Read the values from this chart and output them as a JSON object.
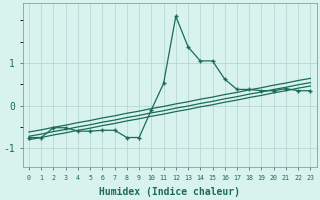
{
  "xlabel": "Humidex (Indice chaleur)",
  "bg_color": "#d8f2ee",
  "grid_color": "#b8d8d4",
  "line_color": "#1a6b5a",
  "x_data": [
    0,
    1,
    2,
    3,
    4,
    5,
    6,
    7,
    8,
    9,
    10,
    11,
    12,
    13,
    14,
    15,
    16,
    17,
    18,
    19,
    20,
    21,
    22,
    23
  ],
  "y_main": [
    -0.75,
    -0.75,
    -0.52,
    -0.52,
    -0.6,
    -0.6,
    -0.58,
    -0.58,
    -0.75,
    -0.75,
    -0.1,
    0.52,
    2.1,
    1.38,
    1.05,
    1.05,
    0.62,
    0.38,
    0.38,
    0.35,
    0.35,
    0.4,
    0.35,
    0.35
  ],
  "y_line1": [
    -0.62,
    -0.57,
    -0.51,
    -0.46,
    -0.4,
    -0.35,
    -0.29,
    -0.24,
    -0.18,
    -0.13,
    -0.07,
    -0.02,
    0.04,
    0.09,
    0.15,
    0.2,
    0.26,
    0.31,
    0.37,
    0.42,
    0.48,
    0.53,
    0.59,
    0.64
  ],
  "y_line2": [
    -0.72,
    -0.67,
    -0.61,
    -0.56,
    -0.5,
    -0.45,
    -0.39,
    -0.34,
    -0.28,
    -0.23,
    -0.17,
    -0.12,
    -0.06,
    -0.01,
    0.05,
    0.1,
    0.16,
    0.21,
    0.27,
    0.32,
    0.38,
    0.43,
    0.49,
    0.54
  ],
  "y_line3": [
    -0.8,
    -0.75,
    -0.69,
    -0.64,
    -0.58,
    -0.53,
    -0.47,
    -0.42,
    -0.36,
    -0.31,
    -0.25,
    -0.2,
    -0.14,
    -0.09,
    -0.03,
    0.02,
    0.08,
    0.13,
    0.19,
    0.24,
    0.3,
    0.35,
    0.41,
    0.46
  ],
  "ylim": [
    -1.45,
    2.4
  ],
  "yticks": [
    -1,
    0,
    1
  ],
  "xlim": [
    -0.5,
    23.5
  ]
}
